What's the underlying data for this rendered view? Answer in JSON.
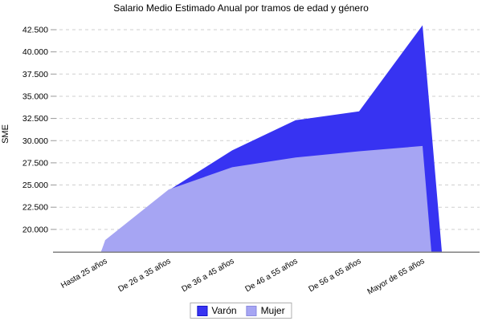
{
  "chart_data": {
    "type": "area",
    "title": "Salario Medio Estimado Anual por tramos de edad y género",
    "ylabel": "SME",
    "xlabel": "",
    "categories": [
      "Hasta 25 años",
      "De 26 a 35 años",
      "De 36 a 45 años",
      "De 46 a 55 años",
      "De 56 a 65 años",
      "Mayor de 65 años"
    ],
    "series": [
      {
        "name": "Varón",
        "color": "#3733f2",
        "swatch_border": "#1515cc",
        "values": [
          18700,
          24400,
          28900,
          32300,
          33300,
          43000
        ]
      },
      {
        "name": "Mujer",
        "color": "#a6a5f3",
        "swatch_border": "#8b8be0",
        "values": [
          18800,
          24500,
          27000,
          28100,
          28800,
          29400
        ]
      }
    ],
    "ylim": [
      17500,
      43500
    ],
    "ytick_values": [
      20000,
      22500,
      25000,
      27500,
      30000,
      32500,
      35000,
      37500,
      40000,
      42500
    ],
    "ytick_labels": [
      "20.000",
      "22.500",
      "25.000",
      "27.500",
      "30.000",
      "32.500",
      "35.000",
      "37.500",
      "40.000",
      "42.500"
    ],
    "grid": "dashed-horizontal",
    "legend_position": "bottom-center"
  }
}
